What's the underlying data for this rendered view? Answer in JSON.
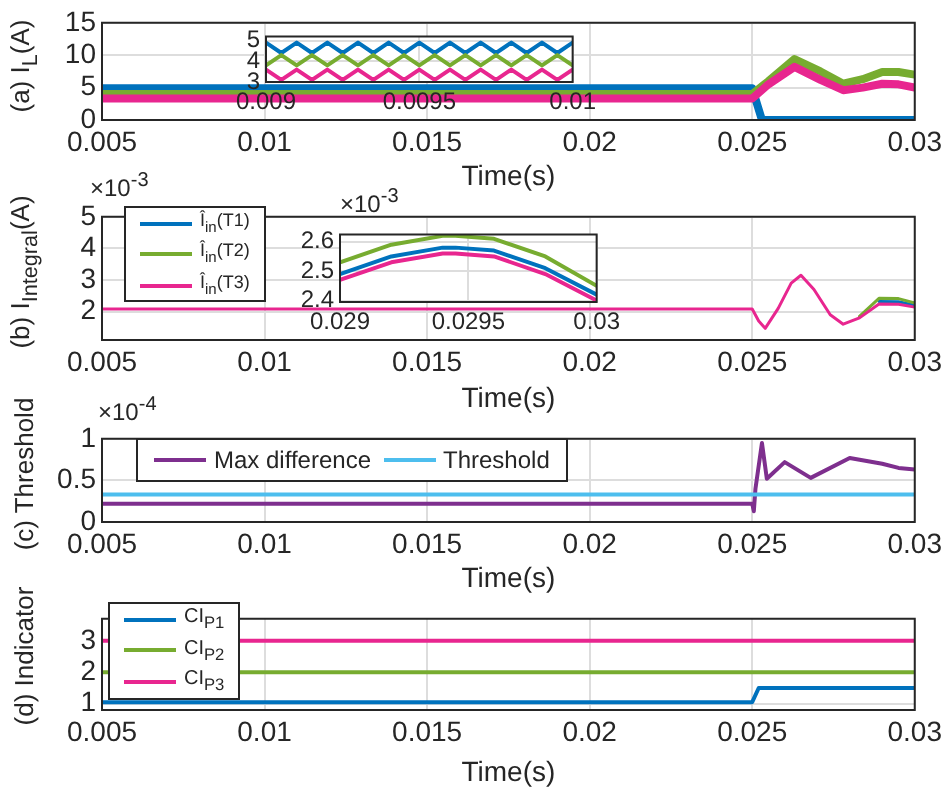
{
  "chart_data": [
    {
      "type": "line",
      "ylabel": "(a) I$_{L}$(A)",
      "xlabel": "Time(s)",
      "xlim": [
        0.005,
        0.03
      ],
      "xticks": [
        0.005,
        0.01,
        0.015,
        0.02,
        0.025,
        0.03
      ],
      "ylim": [
        0,
        15
      ],
      "yticks": [
        0,
        5,
        10,
        15
      ],
      "grid": true,
      "series": [
        {
          "color": "#0072bd",
          "x": [
            0.005,
            0.025,
            0.0253,
            0.03
          ],
          "values": [
            4.9,
            4.9,
            0,
            0
          ]
        },
        {
          "color": "#77ac30",
          "x": [
            0.005,
            0.025,
            0.0255,
            0.0263,
            0.0271,
            0.0278,
            0.0284,
            0.029,
            0.0295,
            0.03
          ],
          "values": [
            4.0,
            4.0,
            6.0,
            9.4,
            7.5,
            5.6,
            6.3,
            7.4,
            7.4,
            7.0
          ]
        },
        {
          "color": "#e8268f",
          "x": [
            0.005,
            0.025,
            0.0255,
            0.0263,
            0.0271,
            0.0278,
            0.0284,
            0.029,
            0.0295,
            0.03
          ],
          "values": [
            3.3,
            3.3,
            5.5,
            8.2,
            6.2,
            4.6,
            5.0,
            5.6,
            5.5,
            5.0
          ]
        }
      ]
    },
    {
      "type": "line",
      "xlim": [
        0.009,
        0.01
      ],
      "xticks": [
        0.009,
        0.0095,
        0.01
      ],
      "ylim": [
        3,
        5.2
      ],
      "yticks": [
        3,
        4,
        5
      ],
      "grid": true,
      "x": [
        0.009,
        0.00905,
        0.0091,
        0.00915,
        0.0092,
        0.00925,
        0.0093,
        0.00935,
        0.0094,
        0.00945,
        0.0095,
        0.00955,
        0.0096,
        0.00965,
        0.0097,
        0.00975,
        0.0098,
        0.00985,
        0.0099,
        0.00995,
        0.01
      ],
      "series": [
        {
          "color": "#0072bd",
          "values": [
            4.9,
            4.4,
            4.9,
            4.4,
            4.9,
            4.4,
            4.9,
            4.4,
            4.9,
            4.4,
            4.9,
            4.4,
            4.9,
            4.4,
            4.9,
            4.4,
            4.9,
            4.4,
            4.9,
            4.4,
            4.9
          ]
        },
        {
          "color": "#77ac30",
          "values": [
            3.8,
            4.3,
            3.8,
            4.3,
            3.8,
            4.3,
            3.8,
            4.3,
            3.8,
            4.3,
            3.8,
            4.3,
            3.8,
            4.3,
            3.8,
            4.3,
            3.8,
            4.3,
            3.8,
            4.3,
            3.8
          ]
        },
        {
          "color": "#e8268f",
          "values": [
            3.6,
            3.1,
            3.6,
            3.1,
            3.6,
            3.1,
            3.6,
            3.1,
            3.6,
            3.1,
            3.6,
            3.1,
            3.6,
            3.1,
            3.6,
            3.1,
            3.6,
            3.1,
            3.6,
            3.1,
            3.6
          ]
        }
      ]
    },
    {
      "type": "line",
      "ylabel": "(b) I$_{Integral}$(A)",
      "xlabel": "Time(s)",
      "annotations": [
        "×10$^{-3}$"
      ],
      "xlim": [
        0.005,
        0.03
      ],
      "xticks": [
        0.005,
        0.01,
        0.015,
        0.02,
        0.025,
        0.03
      ],
      "ylim": [
        1.1,
        5
      ],
      "yticks": [
        2,
        3,
        4,
        5
      ],
      "grid": true,
      "legend": "top left",
      "x": [
        0.005,
        0.025,
        0.0252,
        0.0254,
        0.0258,
        0.0262,
        0.0265,
        0.0269,
        0.0274,
        0.0278,
        0.0283,
        0.0289,
        0.0295,
        0.03
      ],
      "series": [
        {
          "name": "Î$_{in}$(T1)",
          "color": "#0072bd",
          "values": [
            null,
            null,
            null,
            null,
            null,
            null,
            null,
            null,
            null,
            null,
            null,
            2.32,
            2.31,
            2.2
          ]
        },
        {
          "name": "Î$_{in}$(T2)",
          "color": "#77ac30",
          "values": [
            null,
            null,
            null,
            null,
            null,
            null,
            null,
            null,
            null,
            null,
            1.85,
            2.42,
            2.41,
            2.27
          ]
        },
        {
          "name": "Î$_{in}$(T3)",
          "color": "#e8268f",
          "values": [
            2.08,
            2.08,
            1.7,
            1.47,
            2.1,
            2.9,
            3.15,
            2.7,
            1.9,
            1.6,
            1.8,
            2.24,
            2.23,
            2.14
          ]
        }
      ]
    },
    {
      "type": "line",
      "annotations": [
        "×10$^{-3}$"
      ],
      "xlim": [
        0.029,
        0.03
      ],
      "xticks": [
        0.029,
        0.0295,
        0.03
      ],
      "ylim": [
        2.395,
        2.625
      ],
      "yticks": [
        2.4,
        2.5,
        2.6
      ],
      "grid": true,
      "x": [
        0.029,
        0.0292,
        0.0294,
        0.02945,
        0.0296,
        0.0298,
        0.03
      ],
      "series": [
        {
          "color": "#77ac30",
          "values": [
            2.53,
            2.59,
            2.62,
            2.62,
            2.61,
            2.55,
            2.45
          ]
        },
        {
          "color": "#0072bd",
          "values": [
            2.49,
            2.55,
            2.58,
            2.58,
            2.57,
            2.51,
            2.42
          ]
        },
        {
          "color": "#e8268f",
          "values": [
            2.47,
            2.53,
            2.56,
            2.56,
            2.55,
            2.49,
            2.4
          ]
        }
      ]
    },
    {
      "type": "line",
      "ylabel": "(c) Threshold",
      "xlabel": "Time(s)",
      "annotations": [
        "×10$^{-4}$"
      ],
      "xlim": [
        0.005,
        0.03
      ],
      "xticks": [
        0.005,
        0.01,
        0.015,
        0.02,
        0.025,
        0.03
      ],
      "ylim": [
        0,
        1
      ],
      "yticks": [
        0,
        0.5,
        1
      ],
      "grid": true,
      "legend": "top left",
      "series": [
        {
          "name": "Max difference",
          "color": "#7e2f8e",
          "x": [
            0.005,
            0.025,
            0.02505,
            0.0251,
            0.0253,
            0.02545,
            0.026,
            0.0268,
            0.028,
            0.029,
            0.0295,
            0.03
          ],
          "values": [
            0.22,
            0.22,
            0.13,
            0.4,
            0.95,
            0.52,
            0.72,
            0.53,
            0.77,
            0.7,
            0.65,
            0.63
          ]
        },
        {
          "name": "Threshold",
          "color": "#4dbeee",
          "x": [
            0.005,
            0.03
          ],
          "values": [
            0.33,
            0.33
          ]
        }
      ]
    },
    {
      "type": "line",
      "ylabel": "(d) Indicator",
      "xlabel": "Time(s)",
      "xlim": [
        0.005,
        0.03
      ],
      "xticks": [
        0.005,
        0.01,
        0.015,
        0.02,
        0.025,
        0.03
      ],
      "ylim": [
        0.8,
        3.7
      ],
      "yticks": [
        1,
        2,
        3
      ],
      "grid": true,
      "legend": "top left",
      "series": [
        {
          "name": "CI$_{P1}$",
          "color": "#0072bd",
          "x": [
            0.005,
            0.025,
            0.0252,
            0.03
          ],
          "values": [
            1.05,
            1.05,
            1.5,
            1.5
          ]
        },
        {
          "name": "CI$_{P2}$",
          "color": "#77ac30",
          "x": [
            0.005,
            0.03
          ],
          "values": [
            2,
            2
          ]
        },
        {
          "name": "CI$_{P3}$",
          "color": "#e8268f",
          "x": [
            0.005,
            0.03
          ],
          "values": [
            3,
            3
          ]
        }
      ]
    }
  ]
}
